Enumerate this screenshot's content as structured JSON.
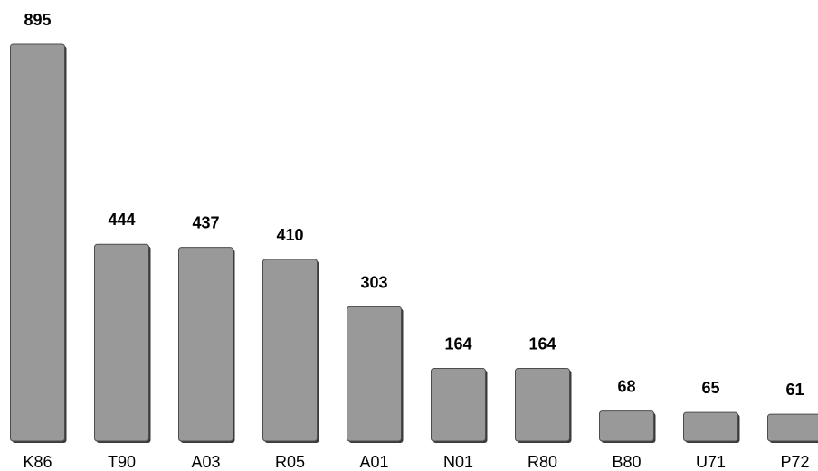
{
  "chart_data": {
    "type": "bar",
    "categories": [
      "K86",
      "T90",
      "A03",
      "R05",
      "A01",
      "N01",
      "R80",
      "B80",
      "U71",
      "P72"
    ],
    "values": [
      895,
      444,
      437,
      410,
      303,
      164,
      164,
      68,
      65,
      61
    ],
    "title": "",
    "xlabel": "",
    "ylabel": "",
    "ylim": [
      0,
      895
    ],
    "grid": false,
    "legend": "none",
    "bar_color": "#999999"
  }
}
